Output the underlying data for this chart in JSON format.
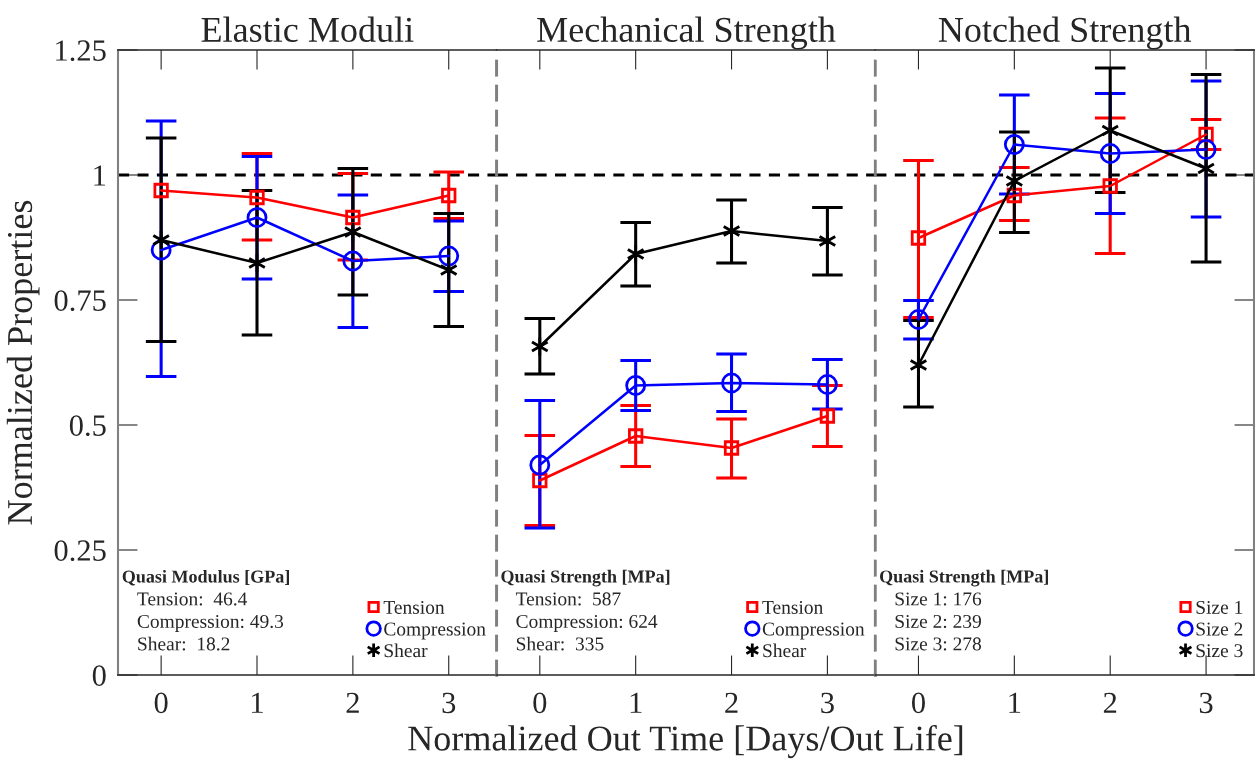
{
  "chart_data": [
    {
      "type": "line",
      "title": "Elastic Moduli",
      "ylabel": "Normalized Properties",
      "x": [
        0,
        1,
        2,
        3
      ],
      "xlim": [
        -0.45,
        3.5
      ],
      "xticks": [
        0,
        1,
        2,
        3
      ],
      "ylim": [
        0,
        1.25
      ],
      "yticks": [
        0,
        0.25,
        0.5,
        0.75,
        1,
        1.25
      ],
      "grid": false,
      "legend": "bottom right",
      "ref_lines": [
        {
          "axis": "y",
          "value": 1,
          "color": "#000000",
          "line_style": "dashed"
        }
      ],
      "annotations": [
        "Quasi Modulus [GPa]",
        "Tension:  46.4",
        "Compression: 49.3",
        "Shear:  18.2"
      ],
      "series": [
        {
          "name": "Tension",
          "color": "#ff0000",
          "marker": "square",
          "values": [
            0.969,
            0.955,
            0.915,
            0.959
          ],
          "errors": [
            null,
            [
              0.87,
              1.043
            ],
            [
              0.83,
              1.003
            ],
            [
              0.913,
              1.006
            ]
          ]
        },
        {
          "name": "Compression",
          "color": "#0000ff",
          "marker": "circle",
          "values": [
            0.85,
            0.915,
            0.828,
            0.838
          ],
          "errors": [
            [
              0.597,
              1.108
            ],
            [
              0.792,
              1.037
            ],
            [
              0.695,
              0.96
            ],
            [
              0.767,
              0.908
            ]
          ]
        },
        {
          "name": "Shear",
          "color": "#000000",
          "marker": "cross",
          "values": [
            0.87,
            0.824,
            0.886,
            0.81
          ],
          "errors": [
            [
              0.667,
              1.074
            ],
            [
              0.68,
              0.969
            ],
            [
              0.76,
              1.013
            ],
            [
              0.697,
              0.923
            ]
          ]
        }
      ]
    },
    {
      "type": "line",
      "title": "Mechanical Strength",
      "xlabel": "Normalized Out Time [Days/Out Life]",
      "x": [
        0,
        1,
        2,
        3
      ],
      "xlim": [
        -0.45,
        3.5
      ],
      "xticks": [
        0,
        1,
        2,
        3
      ],
      "ylim": [
        0,
        1.25
      ],
      "tick_labels": "x",
      "grid": false,
      "legend": "bottom right",
      "ref_lines": [
        {
          "axis": "y",
          "value": 1,
          "color": "#000000",
          "line_style": "dashed"
        }
      ],
      "annotations": [
        "Quasi Strength [MPa]",
        "Tension:  587",
        "Compression: 624",
        "Shear:  335"
      ],
      "series": [
        {
          "name": "Tension",
          "color": "#ff0000",
          "marker": "square",
          "values": [
            0.389,
            0.478,
            0.454,
            0.518
          ],
          "errors": [
            [
              0.299,
              0.479
            ],
            [
              0.417,
              0.539
            ],
            [
              0.394,
              0.512
            ],
            [
              0.457,
              0.579
            ]
          ]
        },
        {
          "name": "Compression",
          "color": "#0000ff",
          "marker": "circle",
          "values": [
            0.42,
            0.579,
            0.584,
            0.581
          ],
          "errors": [
            [
              0.294,
              0.549
            ],
            [
              0.529,
              0.629
            ],
            [
              0.527,
              0.642
            ],
            [
              0.532,
              0.631
            ]
          ]
        },
        {
          "name": "Shear",
          "color": "#000000",
          "marker": "cross",
          "values": [
            0.657,
            0.842,
            0.888,
            0.868
          ],
          "errors": [
            [
              0.602,
              0.713
            ],
            [
              0.778,
              0.905
            ],
            [
              0.824,
              0.95
            ],
            [
              0.8,
              0.935
            ]
          ]
        }
      ]
    },
    {
      "type": "line",
      "title": "Notched Strength",
      "x": [
        0,
        1,
        2,
        3
      ],
      "xlim": [
        -0.45,
        3.5
      ],
      "xticks": [
        0,
        1,
        2,
        3
      ],
      "ylim": [
        0,
        1.25
      ],
      "tick_labels": "x",
      "grid": false,
      "legend": "bottom right",
      "ref_lines": [
        {
          "axis": "y",
          "value": 1,
          "color": "#000000",
          "line_style": "dashed"
        }
      ],
      "annotations": [
        "Quasi Strength [MPa]",
        "Size 1: 176",
        "Size 2: 239",
        "Size 3: 278"
      ],
      "series": [
        {
          "name": "Size 1",
          "color": "#ff0000",
          "marker": "square",
          "values": [
            0.874,
            0.959,
            0.978,
            1.081
          ],
          "errors": [
            [
              0.715,
              1.029
            ],
            [
              0.909,
              1.015
            ],
            [
              0.843,
              1.114
            ],
            [
              1.051,
              1.111
            ]
          ]
        },
        {
          "name": "Size 2",
          "color": "#0000ff",
          "marker": "circle",
          "values": [
            0.711,
            1.061,
            1.043,
            1.051
          ],
          "errors": [
            [
              0.672,
              0.749
            ],
            [
              0.962,
              1.16
            ],
            [
              0.923,
              1.163
            ],
            [
              0.916,
              1.188
            ]
          ]
        },
        {
          "name": "Size 3",
          "color": "#000000",
          "marker": "cross",
          "values": [
            0.62,
            0.988,
            1.089,
            1.013
          ],
          "errors": [
            [
              0.536,
              0.709
            ],
            [
              0.885,
              1.086
            ],
            [
              0.965,
              1.214
            ],
            [
              0.826,
              1.201
            ]
          ]
        }
      ]
    }
  ]
}
